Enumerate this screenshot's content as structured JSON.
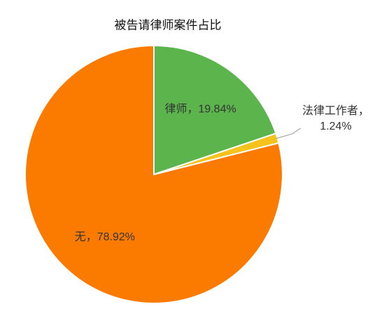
{
  "chart_data": {
    "type": "pie",
    "title": "被告请律师案件占比",
    "categories": [
      "律师",
      "法律工作者",
      "无"
    ],
    "values": [
      19.84,
      1.24,
      78.92
    ],
    "value_labels": [
      "律师，19.84%",
      "法律工作者，1.24%",
      "无，78.92%"
    ],
    "colors": [
      "#5bb54c",
      "#f6c21c",
      "#fb7b00"
    ]
  }
}
